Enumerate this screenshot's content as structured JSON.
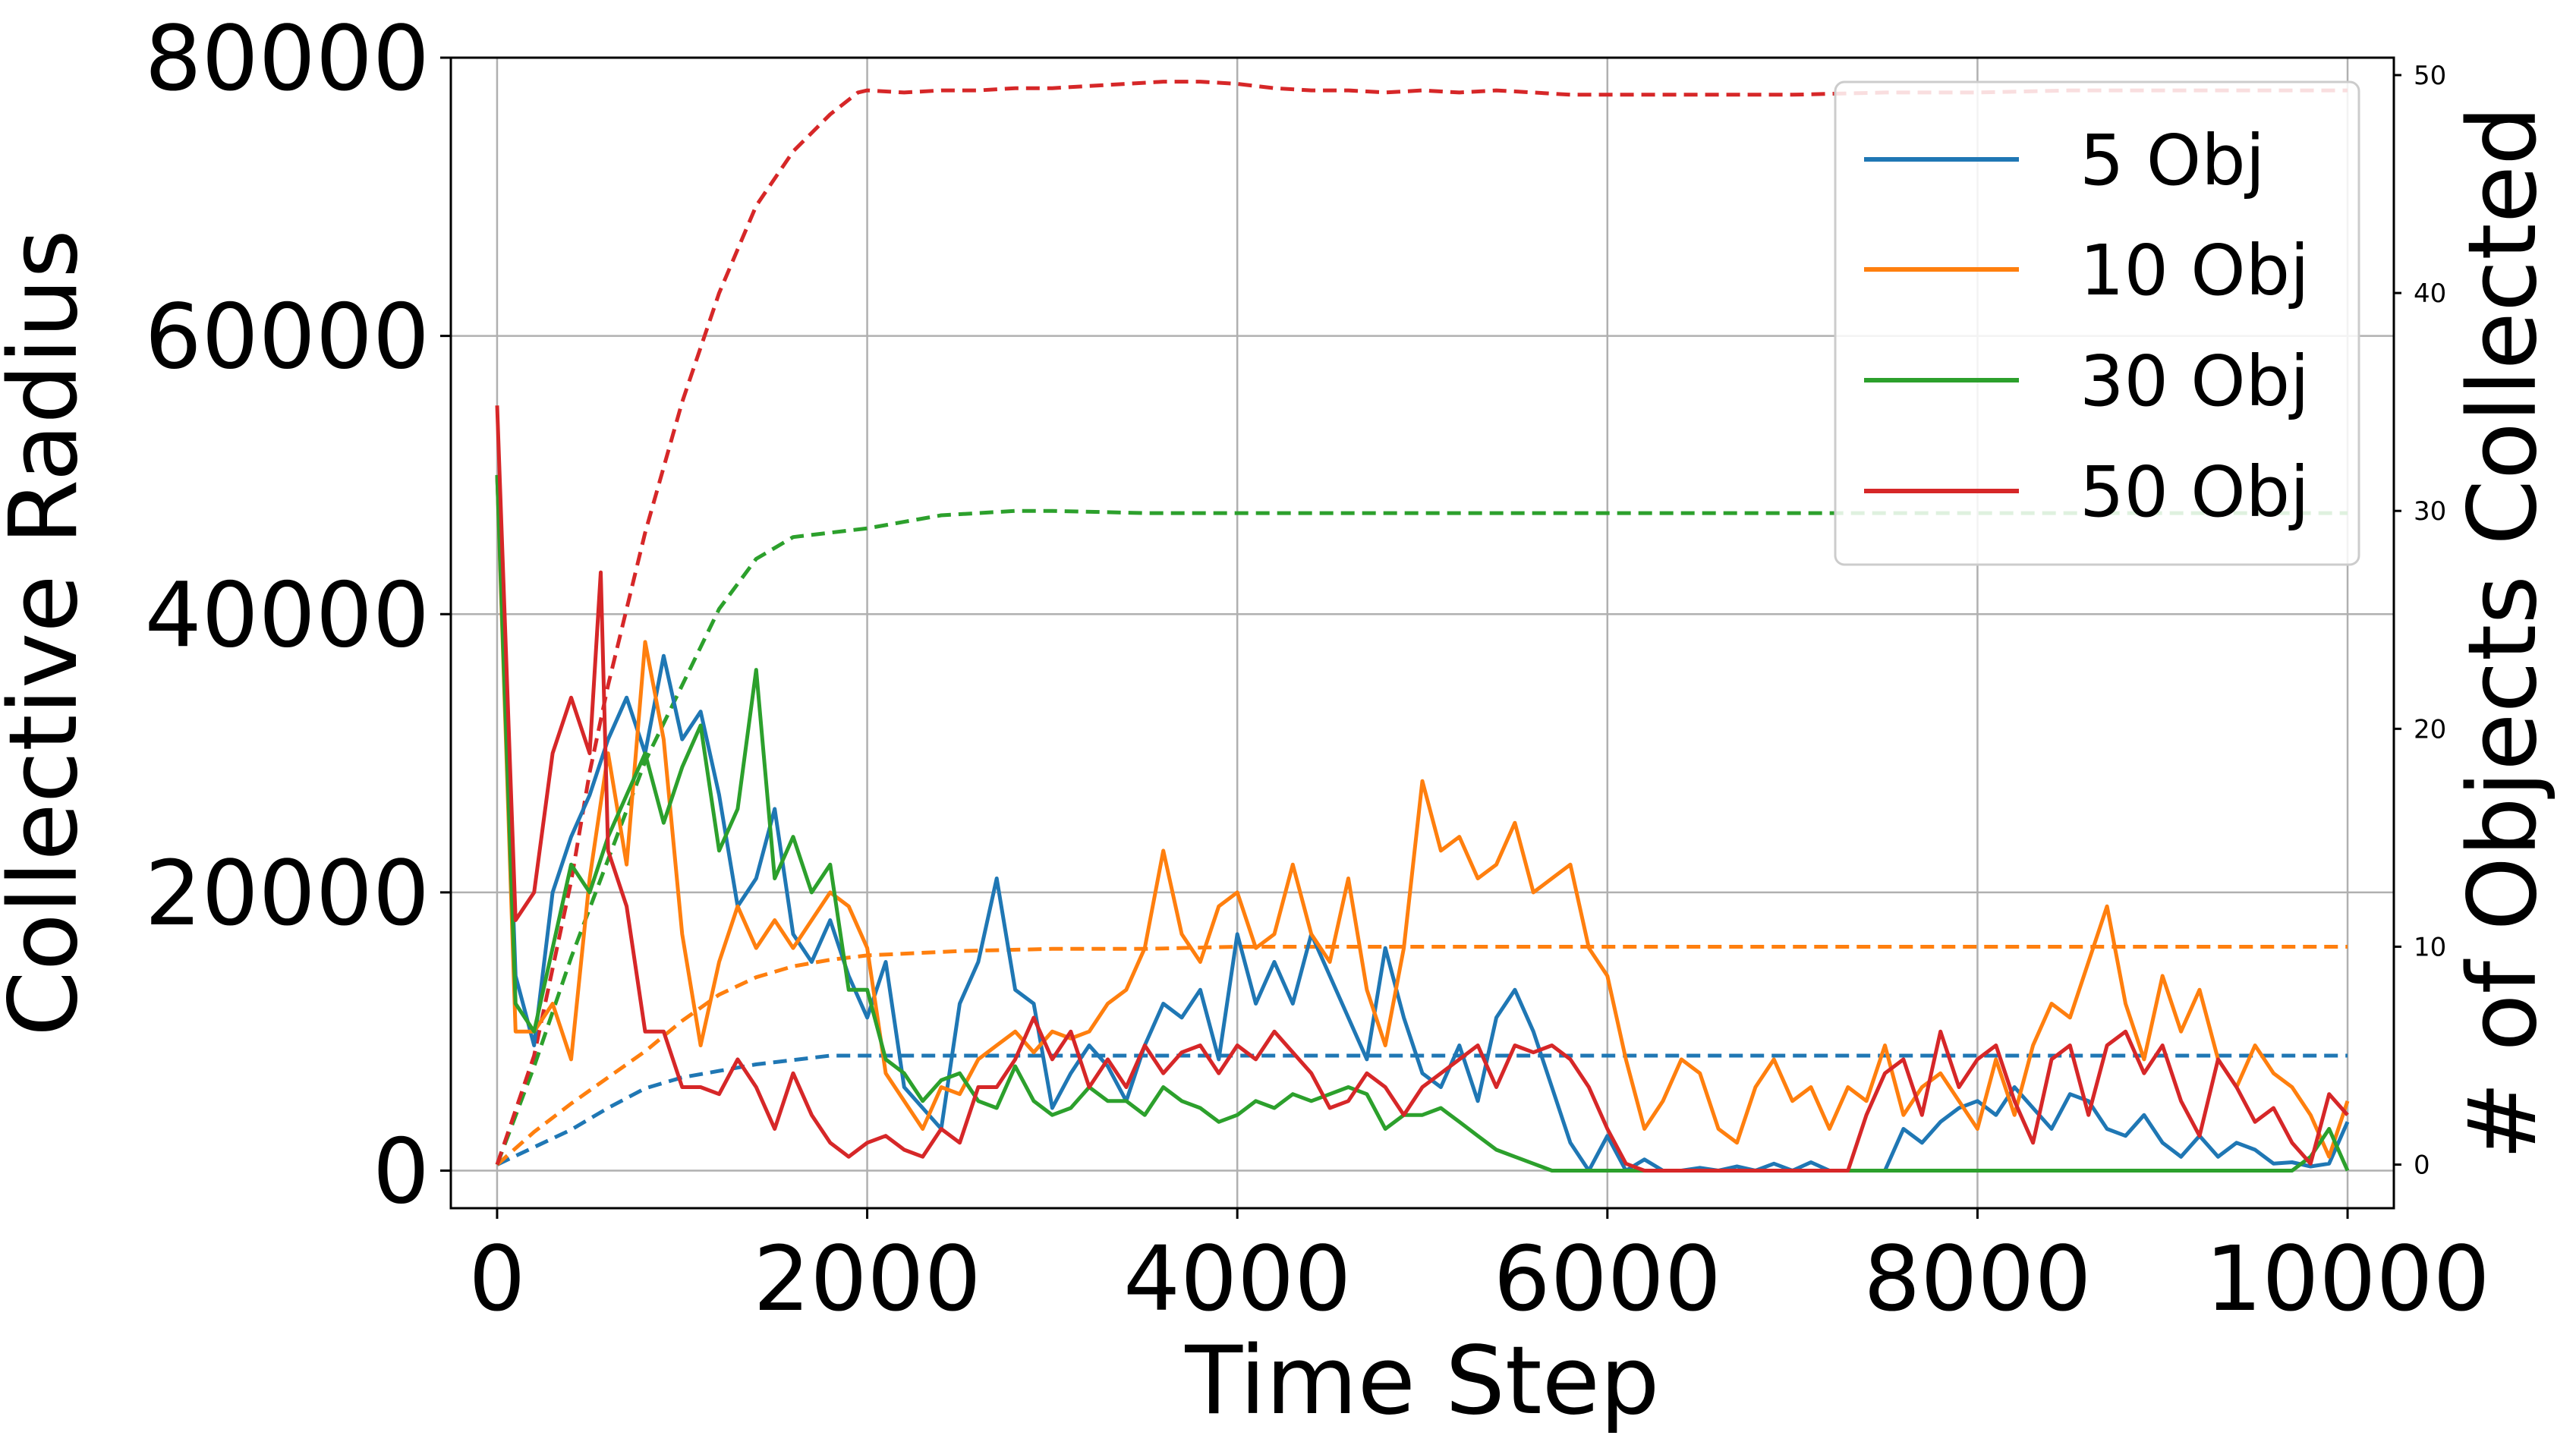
{
  "chart_data": {
    "type": "line",
    "xlabel": "Time Step",
    "ylabel": "Collective Radius",
    "ylabel_right": "# of Objects Collected",
    "xlim": [
      -250,
      10250
    ],
    "ylim": [
      -2700,
      80000
    ],
    "ylim_right": [
      -2,
      50.8
    ],
    "xticks": [
      0,
      2000,
      4000,
      6000,
      8000,
      10000
    ],
    "xtick_labels": [
      "0",
      "2000",
      "4000",
      "6000",
      "8000",
      "10000"
    ],
    "yticks": [
      0,
      20000,
      40000,
      60000,
      80000
    ],
    "ytick_labels": [
      "0",
      "20000",
      "40000",
      "60000",
      "80000"
    ],
    "yticks_right": [
      0,
      10,
      20,
      30,
      40,
      50
    ],
    "ytick_labels_right": [
      "0",
      "10",
      "20",
      "30",
      "40",
      "50"
    ],
    "grid": true,
    "legend_position": "top-right",
    "legend": [
      "5 Obj",
      "10 Obj",
      "30 Obj",
      "50 Obj"
    ],
    "colors": [
      "#1f77b4",
      "#ff7f0e",
      "#2ca02c",
      "#d62728"
    ],
    "series": [
      {
        "name": "5 Obj",
        "color": "#1f77b4",
        "radius": {
          "x": [
            0,
            100,
            200,
            300,
            400,
            500,
            600,
            700,
            800,
            900,
            1000,
            1100,
            1200,
            1300,
            1400,
            1500,
            1600,
            1700,
            1800,
            1900,
            2000,
            2100,
            2200,
            2300,
            2400,
            2500,
            2600,
            2700,
            2800,
            2900,
            3000,
            3100,
            3200,
            3300,
            3400,
            3500,
            3600,
            3700,
            3800,
            3900,
            4000,
            4100,
            4200,
            4300,
            4400,
            4500,
            4600,
            4700,
            4800,
            4900,
            5000,
            5100,
            5200,
            5300,
            5400,
            5500,
            5600,
            5700,
            5800,
            5900,
            6000,
            6100,
            6200,
            6300,
            6400,
            6500,
            6600,
            6700,
            6800,
            6900,
            7000,
            7100,
            7200,
            7300,
            7400,
            7500,
            7600,
            7700,
            7800,
            7900,
            8000,
            8100,
            8200,
            8300,
            8400,
            8500,
            8600,
            8700,
            8800,
            8900,
            9000,
            9100,
            9200,
            9300,
            9400,
            9500,
            9600,
            9700,
            9800,
            9900,
            10000
          ],
          "y": [
            50000,
            14000,
            9000,
            20000,
            24000,
            27000,
            31000,
            34000,
            30000,
            37000,
            31000,
            33000,
            27000,
            19000,
            21000,
            26000,
            17000,
            15000,
            18000,
            14000,
            11000,
            15000,
            6000,
            4500,
            3000,
            12000,
            15000,
            21000,
            13000,
            12000,
            4500,
            7000,
            9000,
            7500,
            5000,
            9000,
            12000,
            11000,
            13000,
            8000,
            17000,
            12000,
            15000,
            12000,
            17000,
            14000,
            11000,
            8000,
            16000,
            11000,
            7000,
            6000,
            9000,
            5000,
            11000,
            13000,
            10000,
            6000,
            2000,
            0,
            2500,
            0,
            800,
            0,
            0,
            200,
            0,
            300,
            0,
            500,
            0,
            600,
            0,
            0,
            0,
            0,
            3000,
            2000,
            3500,
            4500,
            5000,
            4000,
            6000,
            4500,
            3000,
            5500,
            5000,
            3000,
            2500,
            4000,
            2000,
            1000,
            2500,
            1000,
            2000,
            1500,
            500,
            600,
            300,
            500,
            3500
          ]
        },
        "collected": {
          "x": [
            0,
            200,
            400,
            600,
            800,
            1000,
            1200,
            1400,
            1600,
            1800,
            2000,
            2500,
            3000,
            3500,
            4000,
            4500,
            5000,
            5500,
            6000,
            6500,
            7000,
            7500,
            8000,
            8500,
            9000,
            9500,
            10000
          ],
          "y": [
            0,
            0.8,
            1.6,
            2.6,
            3.5,
            4.0,
            4.3,
            4.6,
            4.8,
            5.0,
            5.0,
            5,
            5,
            5,
            5,
            5,
            5,
            5,
            5,
            5,
            5,
            5,
            5,
            5,
            5,
            5,
            5
          ]
        }
      },
      {
        "name": "10 Obj",
        "color": "#ff7f0e",
        "radius": {
          "x": [
            0,
            100,
            200,
            300,
            400,
            500,
            600,
            700,
            800,
            900,
            1000,
            1100,
            1200,
            1300,
            1400,
            1500,
            1600,
            1700,
            1800,
            1900,
            2000,
            2100,
            2200,
            2300,
            2400,
            2500,
            2600,
            2700,
            2800,
            2900,
            3000,
            3100,
            3200,
            3300,
            3400,
            3500,
            3600,
            3700,
            3800,
            3900,
            4000,
            4100,
            4200,
            4300,
            4400,
            4500,
            4600,
            4700,
            4800,
            4900,
            5000,
            5100,
            5200,
            5300,
            5400,
            5500,
            5600,
            5700,
            5800,
            5900,
            6000,
            6100,
            6200,
            6300,
            6400,
            6500,
            6600,
            6700,
            6800,
            6900,
            7000,
            7100,
            7200,
            7300,
            7400,
            7500,
            7600,
            7700,
            7800,
            7900,
            8000,
            8100,
            8200,
            8300,
            8400,
            8500,
            8600,
            8700,
            8800,
            8900,
            9000,
            9100,
            9200,
            9300,
            9400,
            9500,
            9600,
            9700,
            9800,
            9900,
            10000
          ],
          "y": [
            50000,
            10000,
            10000,
            12000,
            8000,
            21000,
            30000,
            22000,
            38000,
            31000,
            17000,
            9000,
            15000,
            19000,
            16000,
            18000,
            16000,
            18000,
            20000,
            19000,
            16000,
            7000,
            5000,
            3000,
            6000,
            5500,
            8000,
            9000,
            10000,
            8500,
            10000,
            9500,
            10000,
            12000,
            13000,
            16000,
            23000,
            17000,
            15000,
            19000,
            20000,
            16000,
            17000,
            22000,
            17000,
            15000,
            21000,
            13000,
            9000,
            16000,
            28000,
            23000,
            24000,
            21000,
            22000,
            25000,
            20000,
            21000,
            22000,
            16000,
            14000,
            8000,
            3000,
            5000,
            8000,
            7000,
            3000,
            2000,
            6000,
            8000,
            5000,
            6000,
            3000,
            6000,
            5000,
            9000,
            4000,
            6000,
            7000,
            5000,
            3000,
            8000,
            4000,
            9000,
            12000,
            11000,
            15000,
            19000,
            12000,
            8000,
            14000,
            10000,
            13000,
            8000,
            6000,
            9000,
            7000,
            6000,
            4000,
            1000,
            5000
          ]
        },
        "collected": {
          "x": [
            0,
            200,
            400,
            600,
            800,
            1000,
            1200,
            1400,
            1600,
            1800,
            2000,
            2500,
            3000,
            3500,
            4000,
            4500,
            5000,
            5500,
            6000,
            6500,
            7000,
            7500,
            8000,
            8500,
            9000,
            9500,
            10000
          ],
          "y": [
            0,
            1.5,
            2.8,
            4.0,
            5.2,
            6.6,
            7.8,
            8.6,
            9.1,
            9.4,
            9.6,
            9.8,
            9.9,
            9.9,
            10,
            10,
            10,
            10,
            10,
            10,
            10,
            10,
            10,
            10,
            10,
            10,
            10
          ]
        }
      },
      {
        "name": "30 Obj",
        "color": "#2ca02c",
        "radius": {
          "x": [
            0,
            100,
            200,
            300,
            400,
            500,
            600,
            700,
            800,
            900,
            1000,
            1100,
            1200,
            1300,
            1400,
            1500,
            1600,
            1700,
            1800,
            1900,
            2000,
            2100,
            2200,
            2300,
            2400,
            2500,
            2600,
            2700,
            2800,
            2900,
            3000,
            3100,
            3200,
            3300,
            3400,
            3500,
            3600,
            3700,
            3800,
            3900,
            4000,
            4100,
            4200,
            4300,
            4400,
            4500,
            4600,
            4700,
            4800,
            4900,
            5000,
            5100,
            5200,
            5300,
            5400,
            5500,
            5600,
            5700,
            5800,
            5900,
            6000,
            6500,
            7000,
            7500,
            8000,
            8500,
            9000,
            9500,
            9700,
            9800,
            9900,
            10000
          ],
          "y": [
            50000,
            12000,
            10000,
            16000,
            22000,
            20000,
            24000,
            27000,
            30000,
            25000,
            29000,
            32000,
            23000,
            26000,
            36000,
            21000,
            24000,
            20000,
            22000,
            13000,
            13000,
            8000,
            7000,
            5000,
            6500,
            7000,
            5000,
            4500,
            7500,
            5000,
            4000,
            4500,
            6000,
            5000,
            5000,
            4000,
            6000,
            5000,
            4500,
            3500,
            4000,
            5000,
            4500,
            5500,
            5000,
            5500,
            6000,
            5500,
            3000,
            4000,
            4000,
            4500,
            3500,
            2500,
            1500,
            1000,
            500,
            0,
            0,
            0,
            0,
            0,
            0,
            0,
            0,
            0,
            0,
            0,
            0,
            1000,
            3000,
            0
          ]
        },
        "collected": {
          "x": [
            0,
            200,
            400,
            600,
            800,
            1000,
            1200,
            1400,
            1600,
            1800,
            2000,
            2200,
            2400,
            2600,
            2800,
            3000,
            3500,
            4000,
            4500,
            5000,
            5500,
            6000,
            6500,
            7000,
            7500,
            8000,
            8500,
            9000,
            9500,
            10000
          ],
          "y": [
            0,
            4.5,
            9.5,
            14.0,
            18.5,
            22.0,
            25.5,
            27.8,
            28.8,
            29.0,
            29.2,
            29.5,
            29.8,
            29.9,
            30,
            30,
            29.9,
            29.9,
            29.9,
            29.9,
            29.9,
            29.9,
            29.9,
            29.9,
            29.9,
            29.9,
            29.9,
            29.9,
            29.9,
            29.9
          ]
        }
      },
      {
        "name": "50 Obj",
        "color": "#d62728",
        "radius": {
          "x": [
            0,
            100,
            200,
            300,
            400,
            500,
            560,
            600,
            700,
            800,
            900,
            1000,
            1100,
            1200,
            1300,
            1400,
            1500,
            1600,
            1700,
            1800,
            1900,
            2000,
            2100,
            2200,
            2300,
            2400,
            2500,
            2600,
            2700,
            2800,
            2900,
            3000,
            3100,
            3200,
            3300,
            3400,
            3500,
            3600,
            3700,
            3800,
            3900,
            4000,
            4100,
            4200,
            4300,
            4400,
            4500,
            4600,
            4700,
            4800,
            4900,
            5000,
            5100,
            5200,
            5300,
            5400,
            5500,
            5600,
            5700,
            5800,
            5900,
            6000,
            6100,
            6200,
            6300,
            6400,
            6500,
            6600,
            6700,
            6800,
            6900,
            7000,
            7100,
            7200,
            7300,
            7400,
            7500,
            7600,
            7700,
            7800,
            7900,
            8000,
            8100,
            8200,
            8300,
            8400,
            8500,
            8600,
            8700,
            8800,
            8900,
            9000,
            9100,
            9200,
            9300,
            9400,
            9500,
            9600,
            9700,
            9800,
            9900,
            10000
          ],
          "y": [
            55000,
            18000,
            20000,
            30000,
            34000,
            30000,
            43000,
            23000,
            19000,
            10000,
            10000,
            6000,
            6000,
            5500,
            8000,
            6000,
            3000,
            7000,
            4000,
            2000,
            1000,
            2000,
            2500,
            1500,
            1000,
            3000,
            2000,
            6000,
            6000,
            8000,
            11000,
            8000,
            10000,
            6000,
            8000,
            6000,
            9000,
            7000,
            8500,
            9000,
            7000,
            9000,
            8000,
            10000,
            8500,
            7000,
            4500,
            5000,
            7000,
            6000,
            4000,
            6000,
            7000,
            8000,
            9000,
            6000,
            9000,
            8500,
            9000,
            8000,
            6000,
            3000,
            500,
            0,
            0,
            0,
            0,
            0,
            0,
            0,
            0,
            0,
            0,
            0,
            0,
            4000,
            7000,
            8000,
            4000,
            10000,
            6000,
            8000,
            9000,
            5000,
            2000,
            8000,
            9000,
            4000,
            9000,
            10000,
            7000,
            9000,
            5000,
            2500,
            8000,
            6000,
            3500,
            4500,
            2000,
            500,
            5500,
            4000
          ]
        },
        "collected": {
          "x": [
            0,
            200,
            400,
            500,
            600,
            800,
            1000,
            1200,
            1400,
            1600,
            1800,
            1950,
            2000,
            2200,
            2400,
            2600,
            2800,
            3000,
            3200,
            3400,
            3600,
            3800,
            4000,
            4200,
            4400,
            4600,
            4800,
            5000,
            5200,
            5400,
            5600,
            5800,
            6000,
            6500,
            7000,
            7500,
            8000,
            8500,
            9000,
            9500,
            10000
          ],
          "y": [
            0,
            5,
            13,
            18,
            22,
            29,
            35,
            40,
            44,
            46.5,
            48.2,
            49.2,
            49.3,
            49.2,
            49.3,
            49.3,
            49.4,
            49.4,
            49.5,
            49.6,
            49.7,
            49.7,
            49.6,
            49.4,
            49.3,
            49.3,
            49.2,
            49.3,
            49.2,
            49.3,
            49.2,
            49.1,
            49.1,
            49.1,
            49.1,
            49.2,
            49.2,
            49.3,
            49.3,
            49.3,
            49.3
          ]
        }
      }
    ]
  }
}
